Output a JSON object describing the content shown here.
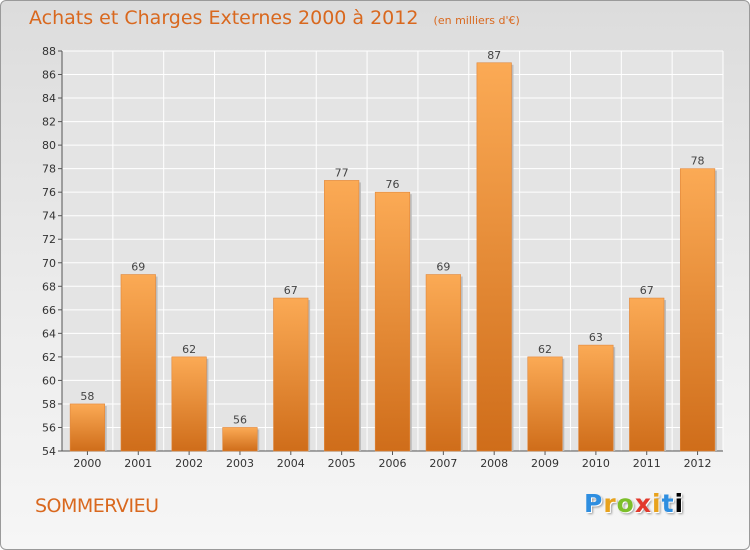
{
  "header": {
    "title": "Achats et Charges Externes 2000 à 2012",
    "unit": "(en milliers d'€)"
  },
  "footer": {
    "town": "SOMMERVIEU",
    "logo_letters": [
      "P",
      "r",
      "o",
      "x",
      "i",
      "t",
      "i"
    ]
  },
  "colors": {
    "bar_light": "#fbaa55",
    "bar_dark": "#cf6d1a",
    "accent": "#d9681e",
    "grid": "#ffffff"
  },
  "chart_data": {
    "type": "bar",
    "title": "Achats et Charges Externes 2000 à 2012",
    "subtitle": "(en milliers d'€)",
    "xlabel": "",
    "ylabel": "",
    "categories": [
      "2000",
      "2001",
      "2002",
      "2003",
      "2004",
      "2005",
      "2006",
      "2007",
      "2008",
      "2009",
      "2010",
      "2011",
      "2012"
    ],
    "values": [
      58,
      69,
      62,
      56,
      67,
      77,
      76,
      69,
      87,
      62,
      63,
      67,
      78
    ],
    "ylim": [
      54,
      88
    ],
    "yticks": [
      54,
      56,
      58,
      60,
      62,
      64,
      66,
      68,
      70,
      72,
      74,
      76,
      78,
      80,
      82,
      84,
      86,
      88
    ],
    "grid": true,
    "legend": "none"
  }
}
